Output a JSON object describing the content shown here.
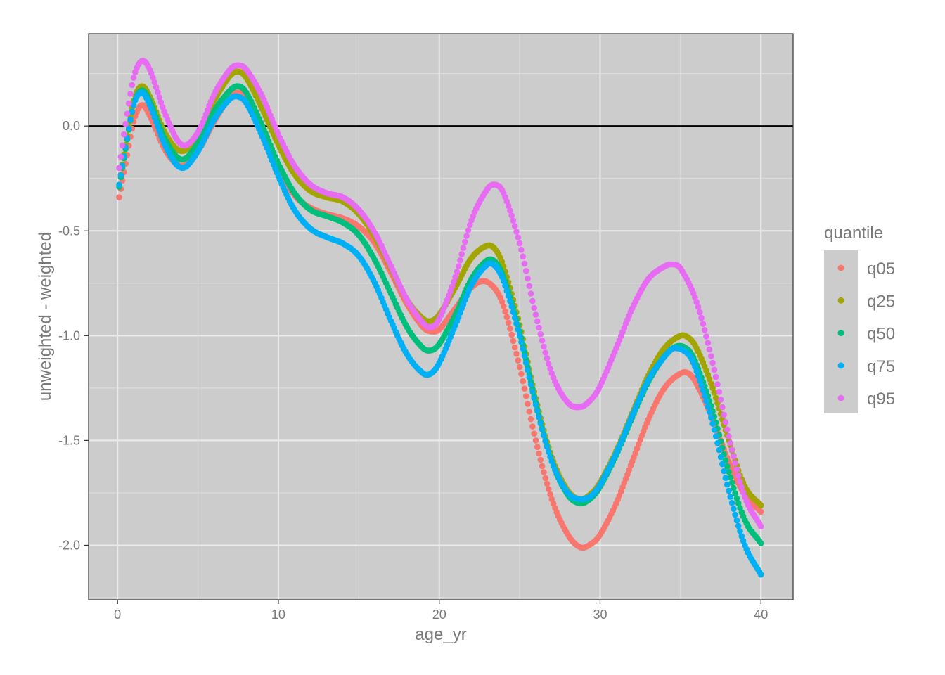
{
  "chart_data": {
    "type": "scatter",
    "title": "",
    "xlabel": "age_yr",
    "ylabel": "unweighted - weighted",
    "xlim": [
      -1.8,
      42
    ],
    "ylim": [
      -2.26,
      0.44
    ],
    "x_ticks": [
      0,
      10,
      20,
      30,
      40
    ],
    "x_tick_labels": [
      "0",
      "10",
      "20",
      "30",
      "40"
    ],
    "y_ticks": [
      0.0,
      -0.5,
      -1.0,
      -1.5,
      -2.0
    ],
    "y_tick_labels": [
      "0.0",
      "-0.5",
      "-1.0",
      "-1.5",
      "-2.0"
    ],
    "grid": true,
    "reference_line_y": 0,
    "panel_background": "#cccccc",
    "legend": {
      "title": "quantile",
      "position": "right",
      "background": "#cccccc"
    },
    "series": [
      {
        "name": "q05",
        "color": "#F8766D",
        "points": [
          [
            0.1,
            -0.34
          ],
          [
            0.5,
            -0.18
          ],
          [
            1.0,
            0.02
          ],
          [
            1.5,
            0.1
          ],
          [
            2.0,
            0.05
          ],
          [
            3.0,
            -0.12
          ],
          [
            4.0,
            -0.19
          ],
          [
            5.0,
            -0.12
          ],
          [
            6.0,
            0.02
          ],
          [
            7.0,
            0.14
          ],
          [
            7.5,
            0.16
          ],
          [
            8.0,
            0.13
          ],
          [
            9.0,
            -0.03
          ],
          [
            10.0,
            -0.2
          ],
          [
            11.0,
            -0.33
          ],
          [
            12.0,
            -0.39
          ],
          [
            13.0,
            -0.42
          ],
          [
            14.0,
            -0.44
          ],
          [
            15.0,
            -0.48
          ],
          [
            16.0,
            -0.56
          ],
          [
            17.0,
            -0.7
          ],
          [
            18.0,
            -0.85
          ],
          [
            19.0,
            -0.96
          ],
          [
            19.5,
            -0.98
          ],
          [
            20.0,
            -0.97
          ],
          [
            21.0,
            -0.87
          ],
          [
            22.0,
            -0.77
          ],
          [
            22.8,
            -0.74
          ],
          [
            23.5,
            -0.78
          ],
          [
            24.0,
            -0.86
          ],
          [
            25.0,
            -1.15
          ],
          [
            26.0,
            -1.5
          ],
          [
            27.0,
            -1.78
          ],
          [
            28.0,
            -1.95
          ],
          [
            28.8,
            -2.01
          ],
          [
            29.5,
            -1.99
          ],
          [
            30.0,
            -1.95
          ],
          [
            31.0,
            -1.8
          ],
          [
            32.0,
            -1.6
          ],
          [
            33.0,
            -1.4
          ],
          [
            34.0,
            -1.25
          ],
          [
            35.0,
            -1.18
          ],
          [
            35.5,
            -1.18
          ],
          [
            36.0,
            -1.23
          ],
          [
            37.0,
            -1.4
          ],
          [
            38.0,
            -1.6
          ],
          [
            39.0,
            -1.76
          ],
          [
            40.0,
            -1.84
          ]
        ]
      },
      {
        "name": "q25",
        "color": "#A3A500",
        "points": [
          [
            0.1,
            -0.28
          ],
          [
            0.5,
            -0.09
          ],
          [
            1.0,
            0.12
          ],
          [
            1.5,
            0.19
          ],
          [
            2.0,
            0.14
          ],
          [
            3.0,
            -0.04
          ],
          [
            4.0,
            -0.12
          ],
          [
            5.0,
            -0.04
          ],
          [
            6.0,
            0.12
          ],
          [
            7.0,
            0.24
          ],
          [
            7.5,
            0.26
          ],
          [
            8.0,
            0.23
          ],
          [
            9.0,
            0.08
          ],
          [
            10.0,
            -0.09
          ],
          [
            11.0,
            -0.23
          ],
          [
            12.0,
            -0.31
          ],
          [
            13.0,
            -0.34
          ],
          [
            14.0,
            -0.36
          ],
          [
            15.0,
            -0.42
          ],
          [
            16.0,
            -0.53
          ],
          [
            17.0,
            -0.68
          ],
          [
            18.0,
            -0.83
          ],
          [
            19.0,
            -0.92
          ],
          [
            19.5,
            -0.93
          ],
          [
            20.0,
            -0.9
          ],
          [
            21.0,
            -0.77
          ],
          [
            22.0,
            -0.63
          ],
          [
            23.0,
            -0.57
          ],
          [
            23.5,
            -0.59
          ],
          [
            24.0,
            -0.67
          ],
          [
            25.0,
            -0.95
          ],
          [
            26.0,
            -1.3
          ],
          [
            27.0,
            -1.58
          ],
          [
            28.0,
            -1.74
          ],
          [
            28.8,
            -1.78
          ],
          [
            29.5,
            -1.75
          ],
          [
            30.0,
            -1.7
          ],
          [
            31.0,
            -1.55
          ],
          [
            32.0,
            -1.37
          ],
          [
            33.0,
            -1.19
          ],
          [
            34.0,
            -1.06
          ],
          [
            35.0,
            -1.0
          ],
          [
            35.5,
            -1.01
          ],
          [
            36.0,
            -1.06
          ],
          [
            37.0,
            -1.25
          ],
          [
            38.0,
            -1.5
          ],
          [
            39.0,
            -1.72
          ],
          [
            40.0,
            -1.81
          ]
        ]
      },
      {
        "name": "q50",
        "color": "#00BF7D",
        "points": [
          [
            0.1,
            -0.29
          ],
          [
            0.5,
            -0.11
          ],
          [
            1.0,
            0.1
          ],
          [
            1.5,
            0.17
          ],
          [
            2.0,
            0.12
          ],
          [
            3.0,
            -0.07
          ],
          [
            4.0,
            -0.16
          ],
          [
            5.0,
            -0.08
          ],
          [
            6.0,
            0.07
          ],
          [
            7.0,
            0.17
          ],
          [
            7.5,
            0.19
          ],
          [
            8.0,
            0.16
          ],
          [
            9.0,
            0.0
          ],
          [
            10.0,
            -0.18
          ],
          [
            11.0,
            -0.32
          ],
          [
            12.0,
            -0.4
          ],
          [
            13.0,
            -0.43
          ],
          [
            14.0,
            -0.46
          ],
          [
            15.0,
            -0.52
          ],
          [
            16.0,
            -0.64
          ],
          [
            17.0,
            -0.8
          ],
          [
            18.0,
            -0.96
          ],
          [
            19.0,
            -1.06
          ],
          [
            19.5,
            -1.07
          ],
          [
            20.0,
            -1.04
          ],
          [
            21.0,
            -0.9
          ],
          [
            22.0,
            -0.73
          ],
          [
            23.0,
            -0.64
          ],
          [
            23.5,
            -0.65
          ],
          [
            24.0,
            -0.72
          ],
          [
            25.0,
            -0.98
          ],
          [
            26.0,
            -1.32
          ],
          [
            27.0,
            -1.6
          ],
          [
            28.0,
            -1.76
          ],
          [
            28.8,
            -1.8
          ],
          [
            29.5,
            -1.77
          ],
          [
            30.0,
            -1.72
          ],
          [
            31.0,
            -1.57
          ],
          [
            32.0,
            -1.39
          ],
          [
            33.0,
            -1.22
          ],
          [
            34.0,
            -1.1
          ],
          [
            34.8,
            -1.05
          ],
          [
            35.5,
            -1.07
          ],
          [
            36.0,
            -1.14
          ],
          [
            37.0,
            -1.36
          ],
          [
            38.0,
            -1.65
          ],
          [
            39.0,
            -1.88
          ],
          [
            40.0,
            -1.99
          ]
        ]
      },
      {
        "name": "q75",
        "color": "#00B0F6",
        "points": [
          [
            0.1,
            -0.28
          ],
          [
            0.5,
            -0.1
          ],
          [
            1.0,
            0.1
          ],
          [
            1.5,
            0.16
          ],
          [
            2.0,
            0.1
          ],
          [
            3.0,
            -0.1
          ],
          [
            4.0,
            -0.2
          ],
          [
            5.0,
            -0.12
          ],
          [
            6.0,
            0.03
          ],
          [
            7.0,
            0.13
          ],
          [
            7.5,
            0.14
          ],
          [
            8.0,
            0.11
          ],
          [
            9.0,
            -0.05
          ],
          [
            10.0,
            -0.24
          ],
          [
            11.0,
            -0.4
          ],
          [
            12.0,
            -0.49
          ],
          [
            13.0,
            -0.53
          ],
          [
            14.0,
            -0.56
          ],
          [
            15.0,
            -0.62
          ],
          [
            16.0,
            -0.75
          ],
          [
            17.0,
            -0.93
          ],
          [
            18.0,
            -1.09
          ],
          [
            19.0,
            -1.18
          ],
          [
            19.5,
            -1.18
          ],
          [
            20.0,
            -1.13
          ],
          [
            21.0,
            -0.95
          ],
          [
            22.0,
            -0.76
          ],
          [
            23.0,
            -0.66
          ],
          [
            23.5,
            -0.67
          ],
          [
            24.0,
            -0.74
          ],
          [
            25.0,
            -1.0
          ],
          [
            26.0,
            -1.33
          ],
          [
            27.0,
            -1.6
          ],
          [
            28.0,
            -1.75
          ],
          [
            28.8,
            -1.78
          ],
          [
            29.5,
            -1.76
          ],
          [
            30.0,
            -1.71
          ],
          [
            31.0,
            -1.56
          ],
          [
            32.0,
            -1.38
          ],
          [
            33.0,
            -1.21
          ],
          [
            34.0,
            -1.1
          ],
          [
            34.6,
            -1.06
          ],
          [
            35.5,
            -1.09
          ],
          [
            36.0,
            -1.17
          ],
          [
            37.0,
            -1.42
          ],
          [
            38.0,
            -1.74
          ],
          [
            39.0,
            -2.0
          ],
          [
            40.0,
            -2.14
          ]
        ]
      },
      {
        "name": "q95",
        "color": "#E76BF3",
        "points": [
          [
            0.1,
            -0.2
          ],
          [
            0.5,
            0.01
          ],
          [
            1.0,
            0.23
          ],
          [
            1.5,
            0.31
          ],
          [
            2.0,
            0.27
          ],
          [
            3.0,
            0.05
          ],
          [
            4.0,
            -0.09
          ],
          [
            5.0,
            -0.03
          ],
          [
            6.0,
            0.15
          ],
          [
            7.0,
            0.27
          ],
          [
            7.5,
            0.29
          ],
          [
            8.0,
            0.27
          ],
          [
            9.0,
            0.14
          ],
          [
            10.0,
            -0.04
          ],
          [
            11.0,
            -0.19
          ],
          [
            12.0,
            -0.28
          ],
          [
            13.0,
            -0.32
          ],
          [
            14.0,
            -0.34
          ],
          [
            15.0,
            -0.4
          ],
          [
            16.0,
            -0.51
          ],
          [
            17.0,
            -0.67
          ],
          [
            18.0,
            -0.83
          ],
          [
            19.0,
            -0.94
          ],
          [
            19.5,
            -0.96
          ],
          [
            20.0,
            -0.92
          ],
          [
            21.0,
            -0.72
          ],
          [
            22.0,
            -0.45
          ],
          [
            23.0,
            -0.3
          ],
          [
            23.5,
            -0.28
          ],
          [
            24.0,
            -0.32
          ],
          [
            25.0,
            -0.56
          ],
          [
            26.0,
            -0.9
          ],
          [
            27.0,
            -1.18
          ],
          [
            28.0,
            -1.32
          ],
          [
            28.8,
            -1.34
          ],
          [
            29.5,
            -1.3
          ],
          [
            30.0,
            -1.24
          ],
          [
            31.0,
            -1.06
          ],
          [
            32.0,
            -0.87
          ],
          [
            33.0,
            -0.73
          ],
          [
            34.0,
            -0.67
          ],
          [
            34.5,
            -0.66
          ],
          [
            35.0,
            -0.68
          ],
          [
            36.0,
            -0.84
          ],
          [
            37.0,
            -1.13
          ],
          [
            38.0,
            -1.48
          ],
          [
            39.0,
            -1.77
          ],
          [
            40.0,
            -1.91
          ]
        ]
      }
    ]
  }
}
